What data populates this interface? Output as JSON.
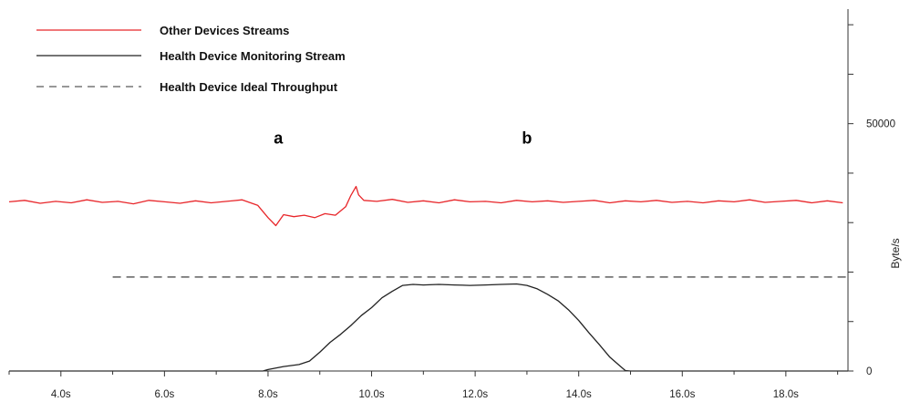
{
  "chart_data": {
    "type": "line",
    "title": "",
    "xlabel": "",
    "ylabel": "Byte/s",
    "xlim": [
      3.0,
      19.2
    ],
    "ylim": [
      0,
      75000
    ],
    "x_ticks": [
      4,
      6,
      8,
      10,
      12,
      14,
      16,
      18
    ],
    "x_tick_labels": [
      "4.0s",
      "6.0s",
      "8.0s",
      "10.0s",
      "12.0s",
      "14.0s",
      "16.0s",
      "18.0s"
    ],
    "y_ticks_labeled": [
      0,
      50000
    ],
    "y_tick_labels": [
      "0",
      "50000"
    ],
    "y_axis_position": "right",
    "grid": false,
    "legend_position": "top-left",
    "colors": {
      "other": "#e8262a",
      "health": "#222222",
      "ideal": "#777777",
      "axis": "#333333"
    },
    "series": [
      {
        "name": "Other Devices Streams",
        "style": "solid",
        "color": "#e8262a",
        "x": [
          3.0,
          3.3,
          3.6,
          3.9,
          4.2,
          4.5,
          4.8,
          5.1,
          5.4,
          5.7,
          6.0,
          6.3,
          6.6,
          6.9,
          7.2,
          7.5,
          7.8,
          8.0,
          8.15,
          8.3,
          8.5,
          8.7,
          8.9,
          9.1,
          9.3,
          9.5,
          9.6,
          9.7,
          9.75,
          9.85,
          10.1,
          10.4,
          10.7,
          11.0,
          11.3,
          11.6,
          11.9,
          12.2,
          12.5,
          12.8,
          13.1,
          13.4,
          13.7,
          14.0,
          14.3,
          14.6,
          14.9,
          15.2,
          15.5,
          15.8,
          16.1,
          16.4,
          16.7,
          17.0,
          17.3,
          17.6,
          17.9,
          18.2,
          18.5,
          18.8,
          19.1
        ],
        "y": [
          34200,
          34500,
          33900,
          34300,
          34000,
          34600,
          34100,
          34300,
          33800,
          34500,
          34200,
          33900,
          34400,
          34000,
          34300,
          34600,
          33500,
          31000,
          29400,
          31600,
          31200,
          31500,
          31000,
          31800,
          31500,
          33200,
          35500,
          37300,
          35600,
          34500,
          34300,
          34700,
          34100,
          34400,
          34000,
          34600,
          34200,
          34300,
          34000,
          34500,
          34200,
          34400,
          34100,
          34300,
          34500,
          34000,
          34400,
          34200,
          34500,
          34100,
          34300,
          34000,
          34400,
          34200,
          34600,
          34100,
          34300,
          34500,
          34000,
          34400,
          34000
        ]
      },
      {
        "name": "Health Device Monitoring Stream",
        "style": "solid",
        "color": "#222222",
        "x": [
          3.0,
          7.9,
          8.0,
          8.3,
          8.6,
          8.8,
          9.0,
          9.2,
          9.4,
          9.6,
          9.8,
          10.0,
          10.2,
          10.4,
          10.6,
          10.8,
          11.0,
          11.3,
          11.6,
          11.9,
          12.2,
          12.5,
          12.8,
          13.0,
          13.2,
          13.4,
          13.6,
          13.8,
          14.0,
          14.2,
          14.4,
          14.6,
          14.8,
          14.9,
          15.0,
          19.2
        ],
        "y": [
          0,
          0,
          300,
          900,
          1300,
          2000,
          3800,
          5800,
          7400,
          9200,
          11200,
          12800,
          14800,
          16100,
          17300,
          17500,
          17400,
          17500,
          17400,
          17300,
          17400,
          17500,
          17600,
          17300,
          16600,
          15500,
          14200,
          12400,
          10200,
          7700,
          5300,
          2800,
          1000,
          100,
          0,
          0
        ]
      },
      {
        "name": "Health Device Ideal Throughput",
        "style": "dashed",
        "color": "#777777",
        "x": [
          5.0,
          19.2
        ],
        "y": [
          19000,
          19000
        ]
      }
    ],
    "annotations": [
      {
        "text": "a",
        "x": 8.2,
        "y": 46000
      },
      {
        "text": "b",
        "x": 13.0,
        "y": 46000
      }
    ]
  }
}
